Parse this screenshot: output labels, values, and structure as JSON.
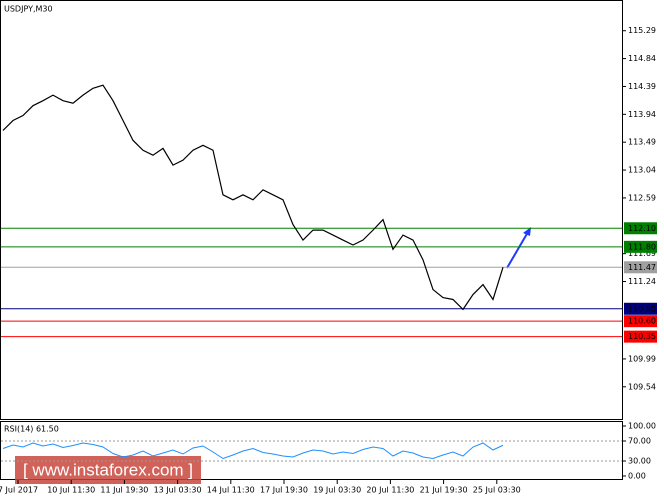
{
  "chart_data": {
    "type": "line",
    "title": "USDJPY,M30",
    "series": [
      {
        "color": "#000000",
        "values": [
          113.68,
          113.84,
          113.92,
          114.08,
          114.16,
          114.25,
          114.16,
          114.12,
          114.25,
          114.36,
          114.41,
          114.16,
          113.84,
          113.52,
          113.36,
          113.28,
          113.39,
          113.12,
          113.2,
          113.36,
          113.44,
          113.36,
          112.64,
          112.56,
          112.64,
          112.56,
          112.72,
          112.64,
          112.56,
          112.16,
          111.91,
          112.07,
          112.07,
          111.99,
          111.91,
          111.83,
          111.91,
          112.07,
          112.24,
          111.76,
          111.99,
          111.91,
          111.59,
          111.11,
          110.98,
          110.95,
          110.79,
          111.03,
          111.19,
          110.95,
          111.47
        ]
      }
    ],
    "ylim": [
      109.02,
      115.77
    ],
    "yticks": [
      115.29,
      114.84,
      114.39,
      113.94,
      113.49,
      113.04,
      112.59,
      111.69,
      111.24,
      109.99,
      109.54
    ],
    "levels": [
      {
        "value": 112.1,
        "label": "112.10",
        "color": "#008000"
      },
      {
        "value": 111.8,
        "label": "111.80",
        "color": "#008000"
      },
      {
        "value": 111.47,
        "label": "111.47",
        "color": "#a0a0a0"
      },
      {
        "value": 110.8,
        "label": "110.80",
        "color": "#00007f"
      },
      {
        "value": 110.6,
        "label": "110.60",
        "color": "#ff0000"
      },
      {
        "value": 110.35,
        "label": "110.35",
        "color": "#ff0000"
      }
    ],
    "xlabels": [
      "7 Jul 2017",
      "10 Jul 11:30",
      "11 Jul 19:30",
      "13 Jul 03:30",
      "14 Jul 11:30",
      "17 Jul 19:30",
      "19 Jul 03:30",
      "20 Jul 11:30",
      "21 Jul 19:30",
      "25 Jul 03:30"
    ],
    "rsi": {
      "title": "RSI(14) 61.50",
      "color": "#1e90ff",
      "ylim": [
        0,
        100
      ],
      "yticks": [
        {
          "value": 100,
          "label": "100.00"
        },
        {
          "value": 70,
          "label": "70.00"
        },
        {
          "value": 30,
          "label": "30.00"
        },
        {
          "value": 0,
          "label": "0.00"
        }
      ],
      "levels": [
        70,
        30
      ],
      "values": [
        55,
        62,
        58,
        66,
        60,
        64,
        57,
        61,
        66,
        63,
        58,
        45,
        38,
        42,
        50,
        40,
        46,
        52,
        44,
        56,
        60,
        48,
        35,
        42,
        50,
        55,
        47,
        44,
        40,
        38,
        46,
        52,
        50,
        44,
        48,
        45,
        53,
        58,
        55,
        40,
        50,
        46,
        38,
        35,
        42,
        48,
        40,
        58,
        66,
        52,
        61.5
      ]
    },
    "watermark": "[ www.instaforex.com ]"
  }
}
